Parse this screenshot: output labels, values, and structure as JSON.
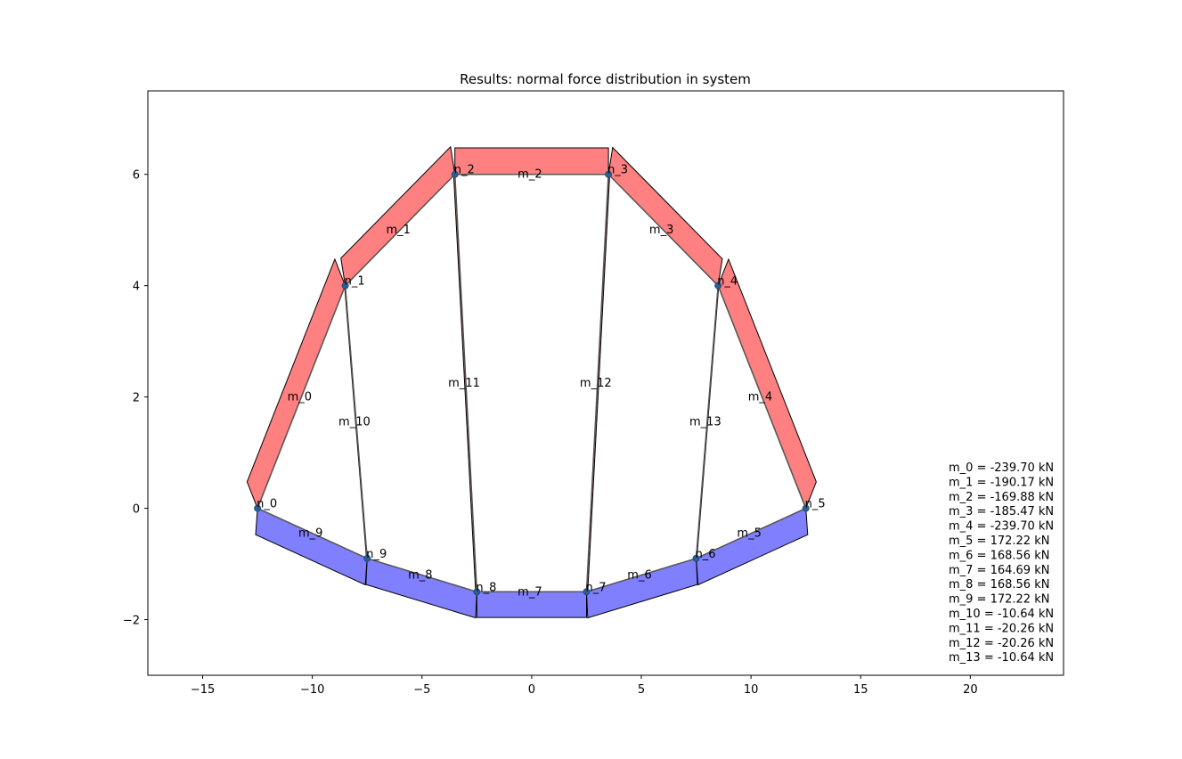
{
  "chart_data": {
    "type": "structural-diagram",
    "title": "Results: normal force distribution in system",
    "xlim": [
      -17.5,
      24.25
    ],
    "ylim": [
      -3.0,
      7.5
    ],
    "xticks": [
      -15,
      -10,
      -5,
      0,
      5,
      10,
      15,
      20
    ],
    "yticks": [
      -2,
      0,
      2,
      4,
      6
    ],
    "colors": {
      "compression": "#ff8080",
      "tension": "#8080ff",
      "member": "#555555",
      "node": "#2a6099",
      "outline": "#000000"
    },
    "nodes": [
      {
        "name": "n_0",
        "x": -12.5,
        "y": 0.0
      },
      {
        "name": "n_1",
        "x": -8.5,
        "y": 4.0
      },
      {
        "name": "n_2",
        "x": -3.5,
        "y": 6.0
      },
      {
        "name": "n_3",
        "x": 3.5,
        "y": 6.0
      },
      {
        "name": "n_4",
        "x": 8.5,
        "y": 4.0
      },
      {
        "name": "n_5",
        "x": 12.5,
        "y": 0.0
      },
      {
        "name": "n_6",
        "x": 7.5,
        "y": -0.9
      },
      {
        "name": "n_7",
        "x": 2.5,
        "y": -1.5
      },
      {
        "name": "n_8",
        "x": -2.5,
        "y": -1.5
      },
      {
        "name": "n_9",
        "x": -7.5,
        "y": -0.9
      }
    ],
    "members": [
      {
        "name": "m_0",
        "from": 0,
        "to": 1,
        "force": -239.7,
        "label": "m_0 = -239.70 kN"
      },
      {
        "name": "m_1",
        "from": 1,
        "to": 2,
        "force": -190.17,
        "label": "m_1 = -190.17 kN"
      },
      {
        "name": "m_2",
        "from": 2,
        "to": 3,
        "force": -169.88,
        "label": "m_2 = -169.88 kN"
      },
      {
        "name": "m_3",
        "from": 3,
        "to": 4,
        "force": -185.47,
        "label": "m_3 = -185.47 kN"
      },
      {
        "name": "m_4",
        "from": 4,
        "to": 5,
        "force": -239.7,
        "label": "m_4 = -239.70 kN"
      },
      {
        "name": "m_5",
        "from": 5,
        "to": 6,
        "force": 172.22,
        "label": "m_5 = 172.22 kN"
      },
      {
        "name": "m_6",
        "from": 6,
        "to": 7,
        "force": 168.56,
        "label": "m_6 = 168.56 kN"
      },
      {
        "name": "m_7",
        "from": 7,
        "to": 8,
        "force": 164.69,
        "label": "m_7 = 164.69 kN"
      },
      {
        "name": "m_8",
        "from": 8,
        "to": 9,
        "force": 168.56,
        "label": "m_8 = 168.56 kN"
      },
      {
        "name": "m_9",
        "from": 9,
        "to": 0,
        "force": 172.22,
        "label": "m_9 = 172.22 kN"
      },
      {
        "name": "m_10",
        "from": 1,
        "to": 9,
        "force": -10.64,
        "label": "m_10 = -10.64 kN"
      },
      {
        "name": "m_11",
        "from": 2,
        "to": 8,
        "force": -20.26,
        "label": "m_11 = -20.26 kN"
      },
      {
        "name": "m_12",
        "from": 3,
        "to": 7,
        "force": -20.26,
        "label": "m_12 = -20.26 kN"
      },
      {
        "name": "m_13",
        "from": 4,
        "to": 6,
        "force": -10.64,
        "label": "m_13 = -10.64 kN"
      }
    ]
  }
}
